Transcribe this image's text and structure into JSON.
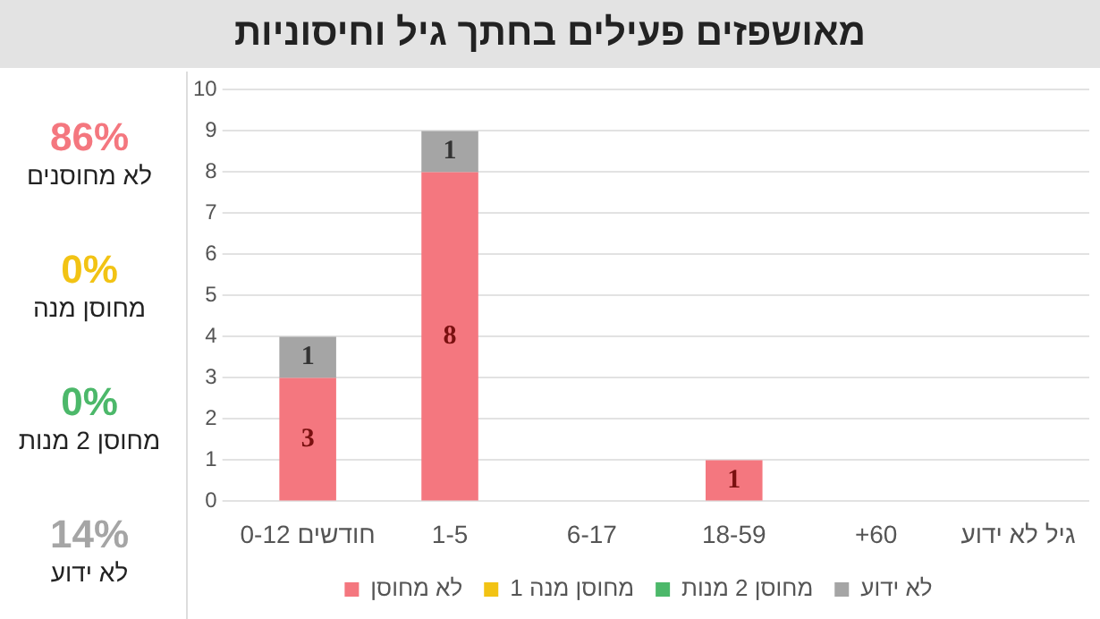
{
  "chart_data": {
    "type": "bar",
    "title": "מאושפזים פעילים בחתך גיל וחיסוניות",
    "categories": [
      "0-12 חודשים",
      "1-5",
      "6-17",
      "18-59",
      "+60",
      "גיל לא ידוע"
    ],
    "stacked": true,
    "series": [
      {
        "name": "לא מחוסן",
        "color": "#f4777f",
        "values": [
          3,
          8,
          0,
          1,
          0,
          0
        ],
        "value_labels": [
          "3",
          "8",
          null,
          "1",
          null,
          null
        ]
      },
      {
        "name": "מחוסן מנה 1",
        "color": "#f2c314",
        "values": [
          0,
          0,
          0,
          0,
          0,
          0
        ],
        "value_labels": [
          null,
          null,
          null,
          null,
          null,
          null
        ]
      },
      {
        "name": "מחוסן 2 מנות",
        "color": "#4cb86a",
        "values": [
          0,
          0,
          0,
          0,
          0,
          0
        ],
        "value_labels": [
          null,
          null,
          null,
          null,
          null,
          null
        ]
      },
      {
        "name": "לא ידוע",
        "color": "#a5a5a5",
        "values": [
          1,
          1,
          0,
          0,
          0,
          0
        ],
        "value_labels": [
          "1",
          "1",
          null,
          null,
          null,
          null
        ]
      }
    ],
    "ylim": [
      0,
      10
    ],
    "yticks": [
      0,
      1,
      2,
      3,
      4,
      5,
      6,
      7,
      8,
      9,
      10
    ],
    "grid": "y",
    "legend": "bottom",
    "annotations": [
      "86%",
      "לא מחוסנים",
      "0%",
      "מחוסן מנה",
      "0%",
      "מחוסן 2 מנות",
      "14%",
      "לא ידוע"
    ]
  }
}
